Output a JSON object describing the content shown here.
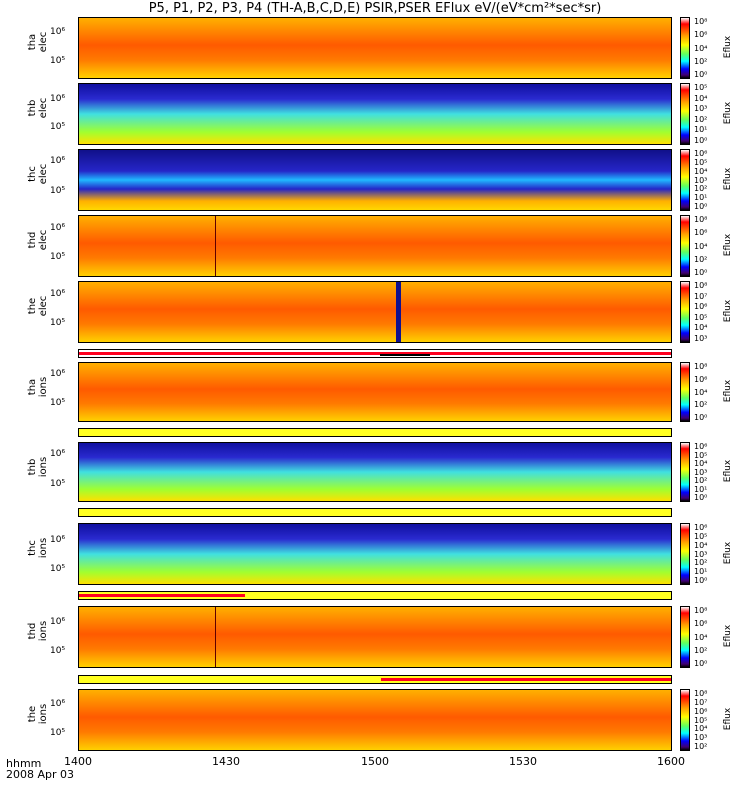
{
  "title": "P5, P1, P2, P3, P4 (TH-A,B,C,D,E) PSIR,PSER EFlux eV/(eV*cm²*sec*sr)",
  "x_axis": {
    "unit_label": "hhmm",
    "date": "2008 Apr 03",
    "ticks": [
      "1400",
      "1430",
      "1500",
      "1530",
      "1600"
    ]
  },
  "colorbar_label": "Eflux",
  "panels": [
    {
      "label1": "tha",
      "label2": "elec",
      "ytick_hi": "10⁶",
      "ytick_lo": "10⁵",
      "cb_ticks": [
        "10⁸",
        "10⁶",
        "10⁴",
        "10²",
        "10⁰"
      ]
    },
    {
      "label1": "thb",
      "label2": "elec",
      "ytick_hi": "10⁶",
      "ytick_lo": "10⁵",
      "cb_ticks": [
        "10⁵",
        "10⁴",
        "10³",
        "10²",
        "10¹",
        "10⁰"
      ]
    },
    {
      "label1": "thc",
      "label2": "elec",
      "ytick_hi": "10⁶",
      "ytick_lo": "10⁵",
      "cb_ticks": [
        "10⁶",
        "10⁵",
        "10⁴",
        "10³",
        "10²",
        "10¹",
        "10⁰"
      ]
    },
    {
      "label1": "thd",
      "label2": "elec",
      "ytick_hi": "10⁶",
      "ytick_lo": "10⁵",
      "cb_ticks": [
        "10⁸",
        "10⁶",
        "10⁴",
        "10²",
        "10⁰"
      ]
    },
    {
      "label1": "the",
      "label2": "elec",
      "ytick_hi": "10⁶",
      "ytick_lo": "10⁵",
      "cb_ticks": [
        "10⁸",
        "10⁷",
        "10⁶",
        "10⁵",
        "10⁴",
        "10³"
      ]
    },
    {
      "label1": "tha",
      "label2": "ions",
      "ytick_hi": "10⁶",
      "ytick_lo": "10⁵",
      "cb_ticks": [
        "10⁸",
        "10⁶",
        "10⁴",
        "10²",
        "10⁰"
      ]
    },
    {
      "label1": "thb",
      "label2": "ions",
      "ytick_hi": "10⁶",
      "ytick_lo": "10⁵",
      "cb_ticks": [
        "10⁶",
        "10⁵",
        "10⁴",
        "10³",
        "10²",
        "10¹",
        "10⁰"
      ]
    },
    {
      "label1": "thc",
      "label2": "ions",
      "ytick_hi": "10⁶",
      "ytick_lo": "10⁵",
      "cb_ticks": [
        "10⁶",
        "10⁵",
        "10⁴",
        "10³",
        "10²",
        "10¹",
        "10⁰"
      ]
    },
    {
      "label1": "thd",
      "label2": "ions",
      "ytick_hi": "10⁶",
      "ytick_lo": "10⁵",
      "cb_ticks": [
        "10⁸",
        "10⁶",
        "10⁴",
        "10²",
        "10⁰"
      ]
    },
    {
      "label1": "the",
      "label2": "ions",
      "ytick_hi": "10⁶",
      "ytick_lo": "10⁵",
      "cb_ticks": [
        "10⁸",
        "10⁷",
        "10⁶",
        "10⁵",
        "10⁴",
        "10³",
        "10²"
      ]
    }
  ],
  "chart_data": {
    "type": "heatmap",
    "title": "P5, P1, P2, P3, P4 (TH-A,B,C,D,E) PSIR,PSER EFlux eV/(eV*cm²*sec*sr)",
    "xlabel": "hhmm",
    "x_ticks": [
      "1400",
      "1430",
      "1500",
      "1530",
      "1600"
    ],
    "ylabel": "",
    "y_ticks": [
      "10⁵",
      "10⁶"
    ],
    "colorbar": "Eflux",
    "colors": {
      "high": "#ff0000",
      "mid": "#ffff00",
      "low": "#0000ff"
    }
  }
}
